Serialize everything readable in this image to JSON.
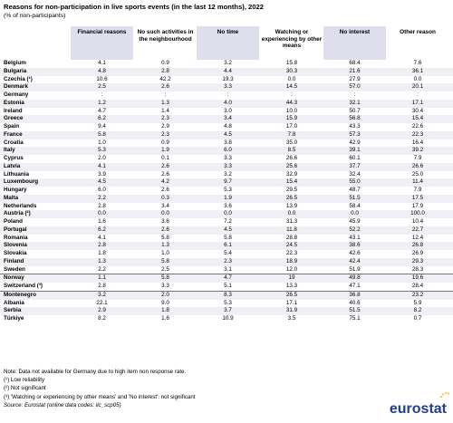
{
  "title": "Reasons for non-participation in live sports events (in the last 12 months), 2022",
  "subtitle": "(% of non-participants)",
  "columns": [
    "Financial reasons",
    "No such activities in the neighbourhood",
    "No time",
    "Watching or experiencing by other means",
    "No interest",
    "Other reason"
  ],
  "rows": [
    {
      "country": "Belgium",
      "values": [
        "4.1",
        "0.9",
        "3.2",
        "15.8",
        "68.4",
        "7.6"
      ]
    },
    {
      "country": "Bulgaria",
      "values": [
        "4.8",
        "2.8",
        "4.4",
        "30.3",
        "21.6",
        "36.1"
      ]
    },
    {
      "country": "Czechia (¹)",
      "values": [
        "10.6",
        "42.2",
        "19.3",
        "0.0",
        "27.9",
        "0.0"
      ]
    },
    {
      "country": "Denmark",
      "values": [
        "2.5",
        "2.6",
        "3.3",
        "14.5",
        "57.0",
        "20.1"
      ]
    },
    {
      "country": "Germany",
      "values": [
        ":",
        ":",
        ":",
        ":",
        ":",
        ":"
      ]
    },
    {
      "country": "Estonia",
      "values": [
        "1.2",
        "1.3",
        "4.0",
        "44.3",
        "32.1",
        "17.1"
      ]
    },
    {
      "country": "Ireland",
      "values": [
        "4.7",
        "1.4",
        "3.0",
        "10.0",
        "50.7",
        "30.4"
      ]
    },
    {
      "country": "Greece",
      "values": [
        "6.2",
        "2.3",
        "3.4",
        "15.9",
        "56.8",
        "15.4"
      ]
    },
    {
      "country": "Spain",
      "values": [
        "9.4",
        "2.9",
        "4.8",
        "17.0",
        "43.3",
        "22.6"
      ]
    },
    {
      "country": "France",
      "values": [
        "5.8",
        "2.3",
        "4.5",
        "7.8",
        "57.3",
        "22.3"
      ]
    },
    {
      "country": "Croatia",
      "values": [
        "1.0",
        "0.9",
        "3.8",
        "35.0",
        "42.9",
        "16.4"
      ]
    },
    {
      "country": "Italy",
      "values": [
        "5.3",
        "1.9",
        "6.0",
        "8.5",
        "39.1",
        "39.2"
      ]
    },
    {
      "country": "Cyprus",
      "values": [
        "2.0",
        "0.1",
        "3.3",
        "26.6",
        "60.1",
        "7.9"
      ]
    },
    {
      "country": "Latvia",
      "values": [
        "4.1",
        "2.6",
        "3.3",
        "25.6",
        "37.7",
        "26.6"
      ]
    },
    {
      "country": "Lithuania",
      "values": [
        "3.9",
        "2.6",
        "3.2",
        "32.9",
        "32.4",
        "25.0"
      ]
    },
    {
      "country": "Luxembourg",
      "values": [
        "4.5",
        "4.2",
        "9.7",
        "15.4",
        "55.0",
        "11.4"
      ]
    },
    {
      "country": "Hungary",
      "values": [
        "6.0",
        "2.6",
        "5.3",
        "29.5",
        "48.7",
        "7.9"
      ]
    },
    {
      "country": "Malta",
      "values": [
        "2.2",
        "0.3",
        "1.9",
        "26.5",
        "51.5",
        "17.5"
      ]
    },
    {
      "country": "Netherlands",
      "values": [
        "2.8",
        "3.4",
        "3.6",
        "13.9",
        "58.4",
        "17.9"
      ]
    },
    {
      "country": "Austria (²)",
      "values": [
        "0.0",
        "0.0",
        "0.0",
        "0.0",
        "0.0",
        "100.0"
      ]
    },
    {
      "country": "Poland",
      "values": [
        "1.6",
        "3.6",
        "7.2",
        "31.3",
        "45.9",
        "10.4"
      ]
    },
    {
      "country": "Portugal",
      "values": [
        "6.2",
        "2.6",
        "4.5",
        "11.8",
        "52.2",
        "22.7"
      ]
    },
    {
      "country": "Romania",
      "values": [
        "4.1",
        "5.8",
        "5.8",
        "28.8",
        "43.1",
        "12.4"
      ]
    },
    {
      "country": "Slovenia",
      "values": [
        "2.8",
        "1.3",
        "6.1",
        "24.5",
        "38.6",
        "26.8"
      ]
    },
    {
      "country": "Slovakia",
      "values": [
        "1.8",
        "1.0",
        "5.4",
        "22.3",
        "42.6",
        "26.9"
      ]
    },
    {
      "country": "Finland",
      "values": [
        "1.3",
        "5.8",
        "2.3",
        "18.9",
        "42.4",
        "29.3"
      ]
    },
    {
      "country": "Sweden",
      "values": [
        "2.2",
        "2.5",
        "3.1",
        "12.0",
        "51.9",
        "28.3"
      ]
    },
    {
      "country": "Norway",
      "values": [
        "1.1",
        "5.8",
        "4.7",
        "19",
        "49.8",
        "19.6"
      ]
    },
    {
      "country": "Switzerland (³)",
      "values": [
        "2.8",
        "3.3",
        "5.1",
        "13.3",
        "47.1",
        "28.4"
      ]
    },
    {
      "country": "Montenegro",
      "values": [
        "3.2",
        "2.0",
        "8.3",
        "26.5",
        "36.8",
        "23.2"
      ]
    },
    {
      "country": "Albania",
      "values": [
        "22.1",
        "9.0",
        "5.3",
        "17.1",
        "40.6",
        "5.9"
      ]
    },
    {
      "country": "Serbia",
      "values": [
        "2.9",
        "1.8",
        "3.7",
        "31.9",
        "51.5",
        "8.2"
      ]
    },
    {
      "country": "Türkiye",
      "values": [
        "8.2",
        "1.6",
        "10.9",
        "3.5",
        "75.1",
        "0.7"
      ]
    }
  ],
  "notes": [
    "Note: Data not available for Germany due to high item non response rate.",
    "(¹) Low reliability",
    "(²) Not significant",
    "(³) 'Watching or experiencing by other means' and 'No interest': not significant"
  ],
  "source": "Source: Eurostat (online data codes: ilc_scp05)",
  "logo_text": "eurostat",
  "colors": {
    "header_band": "#dedeed",
    "alt_row": "#f0f0f4",
    "logo": "#1f3f94",
    "logo_stars": "#f4c400"
  }
}
